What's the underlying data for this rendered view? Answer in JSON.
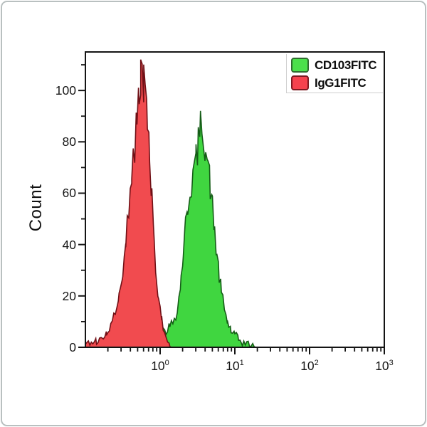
{
  "window": {
    "background": "#ffffff",
    "frame_border_color": "#b9c0c0"
  },
  "y_axis_title": "Count",
  "legend": {
    "items": [
      {
        "label": "CD103FITC",
        "fill": "#4be04b",
        "border": "#2f6b2f"
      },
      {
        "label": "IgG1FITC",
        "fill": "#f5424e",
        "border": "#7d1a22"
      }
    ]
  },
  "chart_data": {
    "type": "area",
    "subtype": "flow-cytometry-overlay-histogram",
    "title": "",
    "xlabel": "",
    "ylabel": "Count",
    "x_scale": "log",
    "xlim": [
      0.1,
      1000
    ],
    "ylim": [
      0,
      115
    ],
    "grid": false,
    "legend_position": "top-right",
    "x_ticks": [
      {
        "base": 10,
        "exp": 0
      },
      {
        "base": 10,
        "exp": 1
      },
      {
        "base": 10,
        "exp": 2
      },
      {
        "base": 10,
        "exp": 3
      }
    ],
    "y_ticks": [
      0,
      20,
      40,
      60,
      80,
      100
    ],
    "y_minor_step": 10,
    "axis_color": "#141414",
    "draw_order": [
      "CD103FITC",
      "IgG1FITC"
    ],
    "series": [
      {
        "name": "CD103FITC",
        "fill": "#40d640",
        "stroke": "#155c17",
        "peak_x": 3.6,
        "peak_count": 90,
        "points": [
          [
            0.355,
            0.5
          ],
          [
            0.447,
            1.5
          ],
          [
            0.562,
            2.5
          ],
          [
            0.708,
            3.5
          ],
          [
            0.891,
            5
          ],
          [
            1.05,
            6
          ],
          [
            1.2,
            7
          ],
          [
            1.35,
            8
          ],
          [
            1.48,
            10
          ],
          [
            1.62,
            13
          ],
          [
            1.78,
            19
          ],
          [
            1.91,
            27
          ],
          [
            2.04,
            37
          ],
          [
            2.19,
            47
          ],
          [
            2.34,
            55
          ],
          [
            2.51,
            61
          ],
          [
            2.75,
            67
          ],
          [
            3.02,
            73
          ],
          [
            3.24,
            79
          ],
          [
            3.47,
            85
          ],
          [
            3.63,
            89
          ],
          [
            3.8,
            84
          ],
          [
            4.07,
            78
          ],
          [
            4.37,
            71
          ],
          [
            4.68,
            63
          ],
          [
            5.01,
            54
          ],
          [
            5.37,
            45
          ],
          [
            5.75,
            36
          ],
          [
            6.17,
            28
          ],
          [
            6.61,
            21
          ],
          [
            7.24,
            15
          ],
          [
            7.94,
            10
          ],
          [
            8.91,
            6.5
          ],
          [
            10.0,
            4.5
          ],
          [
            11.2,
            3
          ],
          [
            12.6,
            2
          ],
          [
            15.1,
            1
          ],
          [
            19.1,
            0
          ]
        ]
      },
      {
        "name": "IgG1FITC",
        "fill": "#f14b4f",
        "stroke": "#701016",
        "peak_x": 0.58,
        "peak_count": 108,
        "points": [
          [
            0.1,
            1.5
          ],
          [
            0.12,
            2
          ],
          [
            0.141,
            2.5
          ],
          [
            0.166,
            3.5
          ],
          [
            0.191,
            5
          ],
          [
            0.219,
            8
          ],
          [
            0.251,
            13
          ],
          [
            0.282,
            19
          ],
          [
            0.316,
            29
          ],
          [
            0.347,
            41
          ],
          [
            0.38,
            54
          ],
          [
            0.417,
            67
          ],
          [
            0.457,
            79
          ],
          [
            0.49,
            91
          ],
          [
            0.525,
            100
          ],
          [
            0.55,
            106
          ],
          [
            0.575,
            108
          ],
          [
            0.603,
            104
          ],
          [
            0.631,
            98
          ],
          [
            0.676,
            87
          ],
          [
            0.724,
            73
          ],
          [
            0.776,
            57
          ],
          [
            0.832,
            41
          ],
          [
            0.891,
            27
          ],
          [
            0.955,
            17
          ],
          [
            1.05,
            11
          ],
          [
            1.15,
            6
          ],
          [
            1.26,
            3
          ],
          [
            1.35,
            1
          ],
          [
            1.41,
            0
          ]
        ]
      }
    ]
  }
}
